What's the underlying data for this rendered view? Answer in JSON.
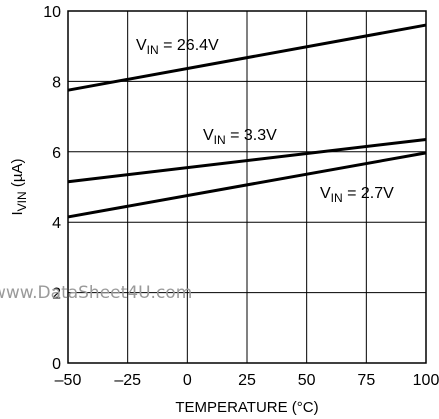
{
  "chart_data": {
    "type": "line",
    "title": "",
    "xlabel": "TEMPERATURE (°C)",
    "ylabel": {
      "main": "I",
      "sub": "VIN",
      "unit": " (µA)"
    },
    "xlim": [
      -50,
      100
    ],
    "ylim": [
      0,
      10
    ],
    "xticks": [
      -50,
      -25,
      0,
      25,
      50,
      75,
      100
    ],
    "xtick_labels": [
      "–50",
      "–25",
      "0",
      "25",
      "50",
      "75",
      "100"
    ],
    "yticks": [
      0,
      2,
      4,
      6,
      8,
      10
    ],
    "ytick_labels": [
      "0",
      "2",
      "4",
      "6",
      "8",
      "10"
    ],
    "grid": true,
    "legend": "none",
    "line_color": "#000000",
    "series": [
      {
        "label": {
          "main": "V",
          "sub": "IN",
          "rest": " = 26.4V"
        },
        "x": [
          -50,
          100
        ],
        "y": [
          7.75,
          9.6
        ]
      },
      {
        "label": {
          "main": "V",
          "sub": "IN",
          "rest": " = 3.3V"
        },
        "x": [
          -50,
          100
        ],
        "y": [
          5.15,
          6.35
        ]
      },
      {
        "label": {
          "main": "V",
          "sub": "IN",
          "rest": " = 2.7V"
        },
        "x": [
          -50,
          100
        ],
        "y": [
          4.15,
          5.97
        ]
      }
    ]
  },
  "watermark": "www.DataSheet4U.com"
}
